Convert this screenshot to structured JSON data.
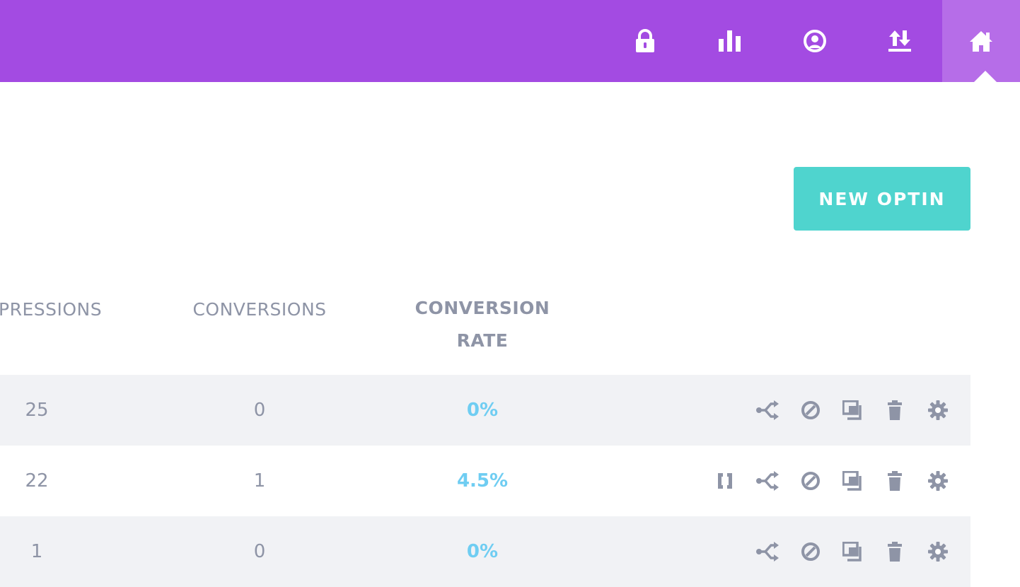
{
  "topbar": {
    "color": "#a34be2",
    "active_color": "#b66de8",
    "icons": [
      "lock-icon",
      "bar-chart-icon",
      "account-circle-icon",
      "import-export-icon",
      "home-icon"
    ]
  },
  "actions": {
    "new_optin_label": "NEW OPTIN",
    "accent": "#4fd4ce"
  },
  "table": {
    "headers": {
      "impressions": "PRESSIONS",
      "conversions": "CONVERSIONS",
      "rate_line1": "CONVERSION",
      "rate_line2": "RATE"
    },
    "rows": [
      {
        "impressions": "25",
        "conversions": "0",
        "rate": "0%",
        "has_shortcode": false
      },
      {
        "impressions": "22",
        "conversions": "1",
        "rate": "4.5%",
        "has_shortcode": true
      },
      {
        "impressions": "1",
        "conversions": "0",
        "rate": "0%",
        "has_shortcode": false
      }
    ],
    "row_actions": [
      "shortcode-icon",
      "split-test-icon",
      "deactivate-icon",
      "duplicate-icon",
      "delete-icon",
      "settings-icon"
    ],
    "rate_color": "#6fcdf2",
    "icon_color": "#8e94a6"
  }
}
